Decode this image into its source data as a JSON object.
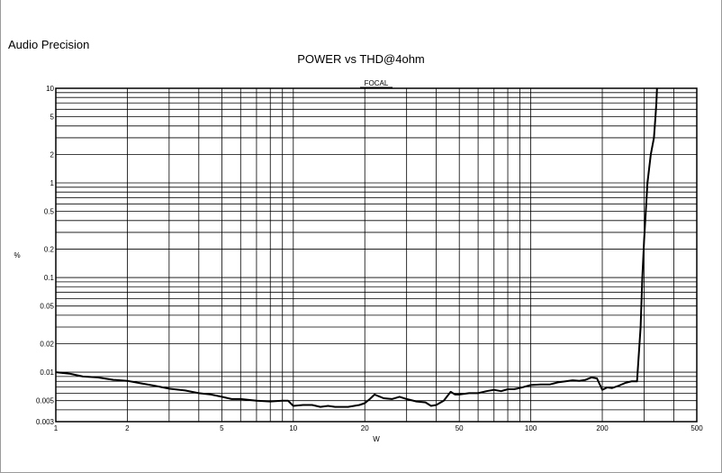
{
  "header": {
    "brand": "Audio Precision",
    "title": "POWER vs THD@4ohm"
  },
  "chart_data": {
    "type": "line",
    "title": "POWER vs THD@4ohm",
    "xlabel": "W",
    "ylabel": "%",
    "x_scale": "log",
    "y_scale": "log",
    "xlim": [
      1,
      500
    ],
    "ylim": [
      0.003,
      10
    ],
    "grid": true,
    "legend": "top-center",
    "x_ticks": [
      "1",
      "2",
      "5",
      "10",
      "20",
      "50",
      "100",
      "200",
      "500"
    ],
    "y_ticks": [
      "10",
      "5",
      "2",
      "1",
      "0.5",
      "0.2",
      "0.1",
      "0.05",
      "0.02",
      "0.01",
      "0.005",
      "0.003"
    ],
    "series": [
      {
        "name": "FOCAL",
        "color": "#000000",
        "x": [
          1,
          1.15,
          1.3,
          1.5,
          1.75,
          2,
          2.3,
          2.6,
          3,
          3.5,
          4,
          4.5,
          5,
          5.5,
          6,
          7,
          8,
          9,
          9.5,
          10,
          11,
          12,
          13,
          14,
          15,
          17,
          19,
          20,
          21,
          22,
          24,
          26,
          28,
          30,
          33,
          36,
          38,
          40,
          43,
          46,
          48,
          50,
          55,
          60,
          65,
          70,
          75,
          80,
          85,
          90,
          100,
          110,
          120,
          130,
          140,
          150,
          160,
          170,
          180,
          190,
          200,
          210,
          220,
          235,
          250,
          265,
          280,
          290,
          295,
          300,
          310,
          320,
          330,
          335,
          338,
          340
        ],
        "y": [
          0.01,
          0.0096,
          0.009,
          0.0088,
          0.0083,
          0.0081,
          0.0076,
          0.0072,
          0.0067,
          0.0064,
          0.006,
          0.0058,
          0.0055,
          0.0052,
          0.0052,
          0.005,
          0.0049,
          0.005,
          0.005,
          0.0044,
          0.0045,
          0.0045,
          0.0043,
          0.0044,
          0.0043,
          0.0043,
          0.0045,
          0.0047,
          0.0052,
          0.0058,
          0.0053,
          0.0052,
          0.0055,
          0.0052,
          0.0049,
          0.0048,
          0.0044,
          0.0045,
          0.005,
          0.0062,
          0.0058,
          0.0058,
          0.006,
          0.006,
          0.0063,
          0.0065,
          0.0063,
          0.0066,
          0.0066,
          0.0068,
          0.0073,
          0.0074,
          0.0074,
          0.0078,
          0.008,
          0.0082,
          0.0081,
          0.0083,
          0.0088,
          0.0086,
          0.0065,
          0.0069,
          0.0068,
          0.0072,
          0.0077,
          0.008,
          0.008,
          0.03,
          0.1,
          0.25,
          1,
          2,
          3,
          5,
          7,
          10
        ]
      }
    ]
  }
}
